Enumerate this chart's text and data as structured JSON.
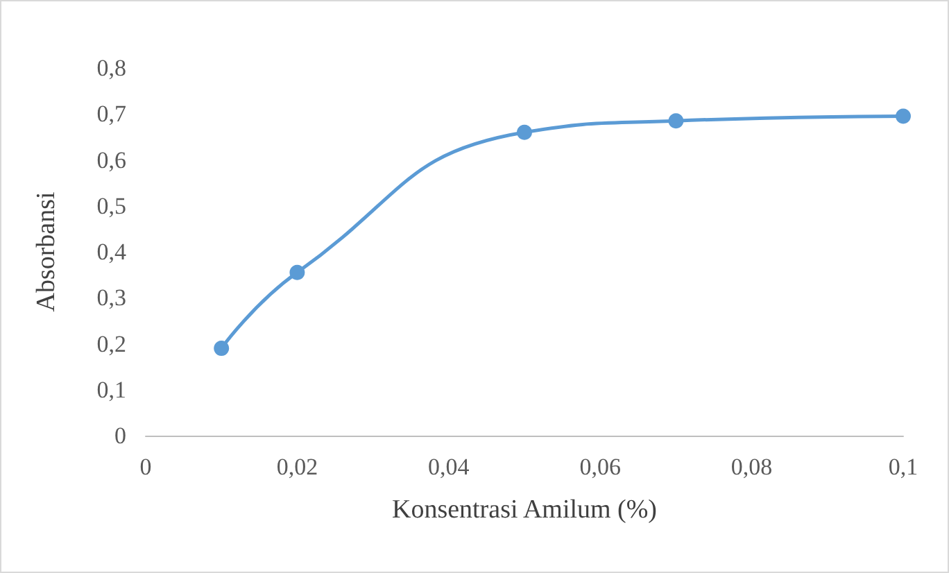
{
  "chart_data": {
    "type": "line",
    "xlabel": "Konsentrasi Amilum (%)",
    "ylabel": "Absorbansi",
    "x": [
      0.01,
      0.02,
      0.05,
      0.07,
      0.1
    ],
    "series": [
      {
        "color": "#5b9bd5",
        "values": [
          0.19,
          0.355,
          0.66,
          0.685,
          0.695
        ]
      }
    ],
    "xlim": [
      0,
      0.1
    ],
    "xticks": [
      0,
      {
        "value": 0.02,
        "label": "0,02"
      },
      {
        "value": 0.04,
        "label": "0,04"
      },
      {
        "value": 0.06,
        "label": "0,06"
      },
      {
        "value": 0.08,
        "label": "0,08"
      },
      {
        "value": 0.1,
        "label": "0,1"
      }
    ],
    "ylim": [
      0,
      0.8
    ],
    "yticks": [
      0,
      {
        "value": 0.1,
        "label": "0,1"
      },
      {
        "value": 0.2,
        "label": "0,2"
      },
      {
        "value": 0.3,
        "label": "0,3"
      },
      {
        "value": 0.4,
        "label": "0,4"
      },
      {
        "value": 0.5,
        "label": "0,5"
      },
      {
        "value": 0.6,
        "label": "0,6"
      },
      {
        "value": 0.7,
        "label": "0,7"
      },
      {
        "value": 0.8,
        "label": "0,8"
      }
    ],
    "grid": false,
    "marker": "circle",
    "line_style": "solid"
  }
}
